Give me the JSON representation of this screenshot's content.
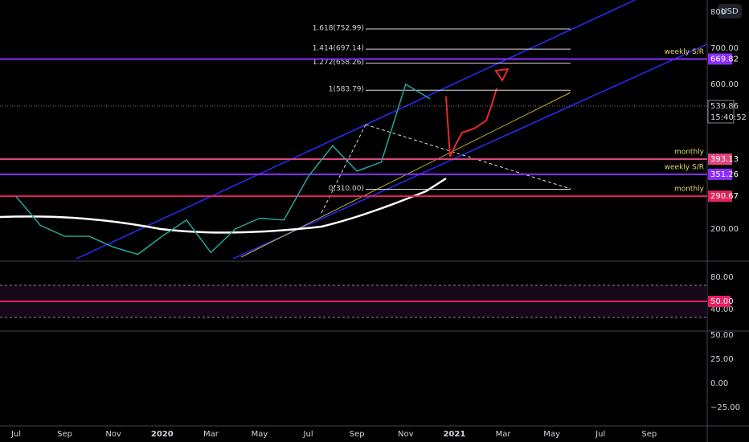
{
  "chart_data": {
    "type": "line",
    "categories": [
      "Jul",
      null,
      "Sep",
      null,
      "Nov",
      null,
      "2020",
      null,
      "Mar",
      null,
      "May",
      null,
      "Jul",
      null,
      "Sep",
      null,
      "Nov",
      null,
      "2021",
      null,
      "Mar",
      null,
      "May",
      null,
      "Jul",
      null,
      "Sep"
    ],
    "values": [
      290,
      210,
      180,
      180,
      150,
      130,
      180,
      225,
      135,
      200,
      230,
      225,
      345,
      430,
      360,
      385,
      600,
      560,
      null,
      null,
      null,
      null,
      null,
      null,
      null,
      null,
      null
    ],
    "color": "#26a69a",
    "ylim": [
      115.6,
      833
    ],
    "yticks": [
      {
        "value": 200,
        "label": "200.00"
      },
      {
        "value": 600,
        "label": "600.00"
      },
      {
        "value": 700,
        "label": "700.00"
      },
      {
        "value": 800,
        "label": "800"
      }
    ],
    "currency": "USD",
    "levels": [
      {
        "name": "weekly S/R",
        "value": 669.82,
        "label": "669.82",
        "color": "#8b2cff"
      },
      {
        "name": "monthly",
        "value": 393.13,
        "label": "393.13",
        "color": "#e0457b"
      },
      {
        "name": "weekly S/R",
        "value": 351.26,
        "label": "351.26",
        "color": "#8b2cff"
      },
      {
        "name": "monthly",
        "value": 290.67,
        "label": "290.67",
        "color": "#e0245e"
      }
    ],
    "fib": [
      {
        "value": 752.99,
        "label": "1.618(752.99)"
      },
      {
        "value": 697.14,
        "label": "1.414(697.14)"
      },
      {
        "value": 658.26,
        "label": "1.272(658.26)"
      },
      {
        "value": 583.79,
        "label": "1(583.79)"
      },
      {
        "value": 310.0,
        "label": "0(310.00)"
      }
    ],
    "last_price": {
      "value": 539.86,
      "label": "539.86"
    },
    "countdown": "15:40:52",
    "rsi_yticks": [
      {
        "value": 80,
        "label": "80.00"
      },
      {
        "value": 40,
        "label": "40.00"
      }
    ],
    "rsi_level": {
      "value": 50,
      "label": "50.00"
    },
    "macd_yticks": [
      {
        "value": 50,
        "label": "50.00"
      },
      {
        "value": 25,
        "label": "25.00"
      },
      {
        "value": 0,
        "label": "0.00"
      },
      {
        "value": -25,
        "label": "−25.00"
      }
    ]
  }
}
